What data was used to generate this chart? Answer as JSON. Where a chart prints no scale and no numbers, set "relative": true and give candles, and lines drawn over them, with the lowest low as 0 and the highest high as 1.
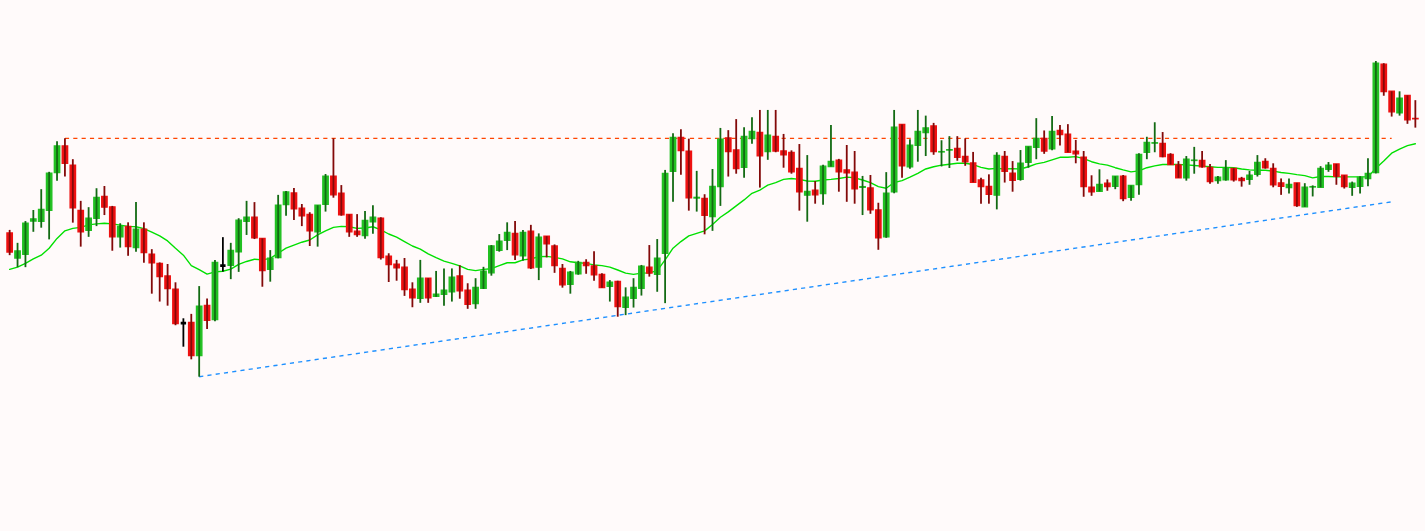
{
  "chart_data": {
    "type": "candlestick",
    "relative": true,
    "categories": [
      null,
      null,
      null,
      null,
      null,
      null,
      null,
      null,
      null,
      null,
      null,
      null,
      null,
      null,
      null,
      null,
      null,
      null,
      null,
      null,
      null,
      null,
      null,
      null,
      null,
      null,
      null,
      null,
      null,
      null,
      null,
      null,
      null,
      null,
      null,
      null,
      null,
      null,
      null,
      null,
      null,
      null,
      null,
      null,
      null,
      null,
      null,
      null,
      null,
      null,
      null,
      null,
      null,
      null,
      null,
      null,
      null,
      null,
      null,
      null,
      null,
      null,
      null,
      null,
      null,
      null,
      null,
      null,
      null,
      null,
      null,
      null,
      null,
      null,
      null,
      null,
      null,
      null,
      null,
      null,
      null,
      null,
      null,
      null,
      null,
      null,
      null,
      null,
      null,
      null,
      null,
      null,
      null,
      null,
      null,
      null,
      null,
      null,
      null,
      null,
      null,
      null,
      null,
      null,
      null,
      null,
      null,
      null,
      null,
      null,
      null,
      null,
      null,
      null,
      null,
      null,
      null,
      null,
      null,
      null,
      null,
      null,
      null,
      null,
      null,
      null,
      null,
      null,
      null,
      null,
      null,
      null,
      null,
      null,
      null,
      null,
      null,
      null,
      null,
      null,
      null,
      null,
      null,
      null,
      null,
      null,
      null,
      null,
      null,
      null,
      null,
      null,
      null,
      null,
      null,
      null,
      null,
      null,
      null,
      null,
      null,
      null,
      null,
      null,
      null,
      null,
      null,
      null,
      null,
      null,
      null,
      null,
      null,
      null,
      null,
      null,
      null,
      null,
      null
    ],
    "ohlc": [
      [
        0.455,
        0.465,
        0.385,
        0.395
      ],
      [
        0.376,
        0.424,
        0.347,
        0.398
      ],
      [
        0.388,
        0.493,
        0.347,
        0.486
      ],
      [
        0.493,
        0.528,
        0.459,
        0.5
      ],
      [
        0.492,
        0.594,
        0.472,
        0.53
      ],
      [
        0.527,
        0.649,
        0.435,
        0.645
      ],
      [
        0.647,
        0.746,
        0.621,
        0.731
      ],
      [
        0.731,
        0.755,
        0.634,
        0.676
      ],
      [
        0.67,
        0.689,
        0.488,
        0.535
      ],
      [
        0.527,
        0.557,
        0.412,
        0.459
      ],
      [
        0.464,
        0.537,
        0.443,
        0.502
      ],
      [
        0.502,
        0.597,
        0.477,
        0.568
      ],
      [
        0.571,
        0.604,
        0.512,
        0.537
      ],
      [
        0.538,
        0.541,
        0.399,
        0.443
      ],
      [
        0.443,
        0.486,
        0.409,
        0.476
      ],
      [
        0.476,
        0.489,
        0.383,
        0.412
      ],
      [
        0.409,
        0.553,
        0.396,
        0.467
      ],
      [
        0.467,
        0.489,
        0.361,
        0.393
      ],
      [
        0.388,
        0.404,
        0.263,
        0.361
      ],
      [
        0.359,
        0.362,
        0.238,
        0.317
      ],
      [
        0.319,
        0.357,
        0.225,
        0.279
      ],
      [
        0.277,
        0.299,
        0.163,
        0.168
      ],
      [
        0.17,
        0.185,
        0.095,
        0.17
      ],
      [
        0.172,
        0.199,
        0.055,
        0.067
      ],
      [
        0.067,
        0.287,
        0,
        0.223
      ],
      [
        0.226,
        0.248,
        0.151,
        0.179
      ],
      [
        0.181,
        0.37,
        0.176,
        0.362
      ],
      [
        0.352,
        0.442,
        0.333,
        0.352
      ],
      [
        0.353,
        0.424,
        0.309,
        0.4
      ],
      [
        0.396,
        0.502,
        0.332,
        0.496
      ],
      [
        0.492,
        0.557,
        0.449,
        0.505
      ],
      [
        0.505,
        0.553,
        0.436,
        0.44
      ],
      [
        0.438,
        0.438,
        0.285,
        0.336
      ],
      [
        0.34,
        0.401,
        0.301,
        0.375
      ],
      [
        0.377,
        0.576,
        0.375,
        0.543
      ],
      [
        0.545,
        0.588,
        0.51,
        0.585
      ],
      [
        0.582,
        0.598,
        0.496,
        0.532
      ],
      [
        0.534,
        0.547,
        0.477,
        0.51
      ],
      [
        0.514,
        0.521,
        0.414,
        0.462
      ],
      [
        0.459,
        0.543,
        0.412,
        0.543
      ],
      [
        0.546,
        0.642,
        0.523,
        0.635
      ],
      [
        0.635,
        0.755,
        0.567,
        0.576
      ],
      [
        0.581,
        0.607,
        0.51,
        0.513
      ],
      [
        0.514,
        0.514,
        0.443,
        0.459
      ],
      [
        0.461,
        0.515,
        0.443,
        0.45
      ],
      [
        0.447,
        0.525,
        0.437,
        0.495
      ],
      [
        0.491,
        0.543,
        0.453,
        0.505
      ],
      [
        0.502,
        0.505,
        0.371,
        0.377
      ],
      [
        0.382,
        0.391,
        0.3,
        0.355
      ],
      [
        0.356,
        0.37,
        0.304,
        0.345
      ],
      [
        0.347,
        0.376,
        0.256,
        0.276
      ],
      [
        0.277,
        0.299,
        0.22,
        0.25
      ],
      [
        0.248,
        0.37,
        0.234,
        0.312
      ],
      [
        0.312,
        0.312,
        0.234,
        0.25
      ],
      [
        0.255,
        0.335,
        0.253,
        0.261
      ],
      [
        0.261,
        0.343,
        0.225,
        0.274
      ],
      [
        0.269,
        0.343,
        0.238,
        0.315
      ],
      [
        0.319,
        0.353,
        0.247,
        0.272
      ],
      [
        0.274,
        0.296,
        0.215,
        0.229
      ],
      [
        0.232,
        0.312,
        0.215,
        0.283
      ],
      [
        0.28,
        0.348,
        0.278,
        0.334
      ],
      [
        0.329,
        0.417,
        0.32,
        0.414
      ],
      [
        0.4,
        0.452,
        0.396,
        0.429
      ],
      [
        0.432,
        0.489,
        0.401,
        0.457
      ],
      [
        0.454,
        0.493,
        0.37,
        0.386
      ],
      [
        0.383,
        0.465,
        0.367,
        0.457
      ],
      [
        0.461,
        0.481,
        0.341,
        0.345
      ],
      [
        0.347,
        0.454,
        0.306,
        0.442
      ],
      [
        0.445,
        0.445,
        0.378,
        0.421
      ],
      [
        0.414,
        0.419,
        0.329,
        0.352
      ],
      [
        0.343,
        0.357,
        0.282,
        0.291
      ],
      [
        0.293,
        0.335,
        0.263,
        0.331
      ],
      [
        0.326,
        0.367,
        0.323,
        0.362
      ],
      [
        0.362,
        0.372,
        0.326,
        0.352
      ],
      [
        0.351,
        0.397,
        0.304,
        0.323
      ],
      [
        0.324,
        0.328,
        0.282,
        0.282
      ],
      [
        0.286,
        0.306,
        0.238,
        0.299
      ],
      [
        0.302,
        0.304,
        0.19,
        0.222
      ],
      [
        0.22,
        0.283,
        0.195,
        0.252
      ],
      [
        0.248,
        0.312,
        0.219,
        0.283
      ],
      [
        0.28,
        0.354,
        0.257,
        0.35
      ],
      [
        0.347,
        0.417,
        0.317,
        0.328
      ],
      [
        0.324,
        0.436,
        0.269,
        0.375
      ],
      [
        0.391,
        0.655,
        0.233,
        0.644
      ],
      [
        0.651,
        0.771,
        0.554,
        0.758
      ],
      [
        0.758,
        0.784,
        0.64,
        0.716
      ],
      [
        0.714,
        0.754,
        0.526,
        0.567
      ],
      [
        0.566,
        0.652,
        0.523,
        0.568
      ],
      [
        0.565,
        0.578,
        0.451,
        0.511
      ],
      [
        0.507,
        0.658,
        0.462,
        0.603
      ],
      [
        0.602,
        0.788,
        0.541,
        0.752
      ],
      [
        0.756,
        0.781,
        0.634,
        0.713
      ],
      [
        0.718,
        0.816,
        0.643,
        0.659
      ],
      [
        0.663,
        0.79,
        0.63,
        0.761
      ],
      [
        0.754,
        0.822,
        0.738,
        0.777
      ],
      [
        0.774,
        0.845,
        0.599,
        0.7
      ],
      [
        0.713,
        0.845,
        0.687,
        0.765
      ],
      [
        0.761,
        0.845,
        0.711,
        0.715
      ],
      [
        0.715,
        0.769,
        0.662,
        0.703
      ],
      [
        0.71,
        0.717,
        0.643,
        0.649
      ],
      [
        0.66,
        0.737,
        0.526,
        0.586
      ],
      [
        0.575,
        0.702,
        0.491,
        0.587
      ],
      [
        0.591,
        0.62,
        0.548,
        0.576
      ],
      [
        0.58,
        0.671,
        0.545,
        0.667
      ],
      [
        0.666,
        0.797,
        0.666,
        0.682
      ],
      [
        0.686,
        0.69,
        0.586,
        0.649
      ],
      [
        0.655,
        0.734,
        0.554,
        0.646
      ],
      [
        0.648,
        0.715,
        0.548,
        0.595
      ],
      [
        0.6,
        0.636,
        0.512,
        0.602
      ],
      [
        0.598,
        0.639,
        0.516,
        0.529
      ],
      [
        0.528,
        0.551,
        0.402,
        0.44
      ],
      [
        0.443,
        0.648,
        0.44,
        0.581
      ],
      [
        0.586,
        0.845,
        0.581,
        0.79
      ],
      [
        0.799,
        0.799,
        0.63,
        0.668
      ],
      [
        0.665,
        0.752,
        0.659,
        0.733
      ],
      [
        0.733,
        0.845,
        0.681,
        0.777
      ],
      [
        0.773,
        0.827,
        0.699,
        0.788
      ],
      [
        0.794,
        0.804,
        0.703,
        0.713
      ],
      [
        0.712,
        0.749,
        0.666,
        0.713
      ],
      [
        0.718,
        0.762,
        0.661,
        0.719
      ],
      [
        0.723,
        0.762,
        0.684,
        0.695
      ],
      [
        0.698,
        0.755,
        0.668,
        0.681
      ],
      [
        0.677,
        0.712,
        0.616,
        0.616
      ],
      [
        0.623,
        0.63,
        0.548,
        0.602
      ],
      [
        0.603,
        0.641,
        0.548,
        0.578
      ],
      [
        0.575,
        0.711,
        0.53,
        0.701
      ],
      [
        0.698,
        0.715,
        0.615,
        0.651
      ],
      [
        0.645,
        0.683,
        0.586,
        0.622
      ],
      [
        0.625,
        0.718,
        0.621,
        0.676
      ],
      [
        0.679,
        0.729,
        0.662,
        0.729
      ],
      [
        0.727,
        0.819,
        0.689,
        0.755
      ],
      [
        0.755,
        0.78,
        0.706,
        0.715
      ],
      [
        0.722,
        0.826,
        0.717,
        0.777
      ],
      [
        0.78,
        0.797,
        0.732,
        0.767
      ],
      [
        0.768,
        0.8,
        0.711,
        0.711
      ],
      [
        0.714,
        0.75,
        0.676,
        0.706
      ],
      [
        0.695,
        0.715,
        0.57,
        0.602
      ],
      [
        0.6,
        0.638,
        0.573,
        0.586
      ],
      [
        0.587,
        0.657,
        0.587,
        0.609
      ],
      [
        0.613,
        0.625,
        0.589,
        0.602
      ],
      [
        0.603,
        0.635,
        0.594,
        0.635
      ],
      [
        0.635,
        0.639,
        0.556,
        0.564
      ],
      [
        0.568,
        0.606,
        0.557,
        0.606
      ],
      [
        0.609,
        0.708,
        0.576,
        0.704
      ],
      [
        0.711,
        0.76,
        0.689,
        0.742
      ],
      [
        0.74,
        0.806,
        0.711,
        0.741
      ],
      [
        0.739,
        0.775,
        0.695,
        0.697
      ],
      [
        0.704,
        0.708,
        0.672,
        0.672
      ],
      [
        0.671,
        0.683,
        0.63,
        0.63
      ],
      [
        0.63,
        0.699,
        0.621,
        0.689
      ],
      [
        0.685,
        0.728,
        0.643,
        0.686
      ],
      [
        0.685,
        0.715,
        0.662,
        0.665
      ],
      [
        0.663,
        0.674,
        0.611,
        0.618
      ],
      [
        0.621,
        0.636,
        0.611,
        0.632
      ],
      [
        0.624,
        0.686,
        0.621,
        0.66
      ],
      [
        0.66,
        0.66,
        0.618,
        0.624
      ],
      [
        0.628,
        0.633,
        0.602,
        0.621
      ],
      [
        0.625,
        0.652,
        0.608,
        0.638
      ],
      [
        0.641,
        0.702,
        0.634,
        0.679
      ],
      [
        0.682,
        0.692,
        0.659,
        0.662
      ],
      [
        0.66,
        0.676,
        0.6,
        0.608
      ],
      [
        0.614,
        0.628,
        0.576,
        0.603
      ],
      [
        0.599,
        0.628,
        0.58,
        0.609
      ],
      [
        0.614,
        0.614,
        0.538,
        0.542
      ],
      [
        0.538,
        0.613,
        0.538,
        0.6
      ],
      [
        0.601,
        0.606,
        0.571,
        0.602
      ],
      [
        0.6,
        0.667,
        0.6,
        0.66
      ],
      [
        0.657,
        0.68,
        0.649,
        0.67
      ],
      [
        0.674,
        0.674,
        0.608,
        0.635
      ],
      [
        0.638,
        0.638,
        0.596,
        0.602
      ],
      [
        0.6,
        0.618,
        0.573,
        0.613
      ],
      [
        0.603,
        0.635,
        0.58,
        0.632
      ],
      [
        0.628,
        0.692,
        0.603,
        0.644
      ],
      [
        0.647,
        1,
        0.644,
        0.993
      ],
      [
        0.99,
        0.993,
        0.89,
        0.903
      ],
      [
        0.904,
        0.904,
        0.824,
        0.839
      ],
      [
        0.836,
        0.904,
        0.827,
        0.882
      ],
      [
        0.891,
        0.891,
        0.801,
        0.814
      ],
      [
        0.818,
        0.876,
        0.789,
        0.817
      ]
    ],
    "colors": [
      "#ee1111",
      "#22c022",
      "#22c022",
      "#22c022",
      "#22c022",
      "#22c022",
      "#22c022",
      "#ee1111",
      "#ee1111",
      "#ee1111",
      "#22c022",
      "#22c022",
      "#ee1111",
      "#ee1111",
      "#22c022",
      "#ee1111",
      "#22c022",
      "#ee1111",
      "#ee1111",
      "#ee1111",
      "#ee1111",
      "#ee1111",
      "#000000",
      "#ee1111",
      "#22c022",
      "#ee1111",
      "#22c022",
      "#000000",
      "#22c022",
      "#22c022",
      "#22c022",
      "#ee1111",
      "#ee1111",
      "#22c022",
      "#22c022",
      "#22c022",
      "#ee1111",
      "#ee1111",
      "#ee1111",
      "#22c022",
      "#22c022",
      "#ee1111",
      "#ee1111",
      "#ee1111",
      "#ee1111",
      "#22c022",
      "#22c022",
      "#ee1111",
      "#ee1111",
      "#ee1111",
      "#ee1111",
      "#ee1111",
      "#22c022",
      "#ee1111",
      "#22c022",
      "#22c022",
      "#22c022",
      "#ee1111",
      "#ee1111",
      "#22c022",
      "#22c022",
      "#22c022",
      "#22c022",
      "#22c022",
      "#ee1111",
      "#22c022",
      "#ee1111",
      "#22c022",
      "#ee1111",
      "#ee1111",
      "#ee1111",
      "#22c022",
      "#22c022",
      "#ee1111",
      "#ee1111",
      "#ee1111",
      "#22c022",
      "#ee1111",
      "#22c022",
      "#22c022",
      "#22c022",
      "#ee1111",
      "#22c022",
      "#22c022",
      "#22c022",
      "#ee1111",
      "#ee1111",
      "#22c022",
      "#ee1111",
      "#22c022",
      "#22c022",
      "#ee1111",
      "#ee1111",
      "#22c022",
      "#22c022",
      "#ee1111",
      "#22c022",
      "#ee1111",
      "#ee1111",
      "#ee1111",
      "#ee1111",
      "#22c022",
      "#ee1111",
      "#22c022",
      "#22c022",
      "#ee1111",
      "#ee1111",
      "#ee1111",
      "#22c022",
      "#ee1111",
      "#ee1111",
      "#22c022",
      "#22c022",
      "#ee1111",
      "#22c022",
      "#22c022",
      "#22c022",
      "#ee1111",
      "#22c022",
      "#22c022",
      "#ee1111",
      "#ee1111",
      "#ee1111",
      "#ee1111",
      "#ee1111",
      "#22c022",
      "#ee1111",
      "#ee1111",
      "#22c022",
      "#22c022",
      "#22c022",
      "#ee1111",
      "#22c022",
      "#ee1111",
      "#ee1111",
      "#ee1111",
      "#ee1111",
      "#ee1111",
      "#22c022",
      "#ee1111",
      "#22c022",
      "#ee1111",
      "#22c022",
      "#22c022",
      "#22c022",
      "#22c022",
      "#ee1111",
      "#ee1111",
      "#ee1111",
      "#22c022",
      "#22c022",
      "#ee1111",
      "#ee1111",
      "#22c022",
      "#22c022",
      "#ee1111",
      "#ee1111",
      "#22c022",
      "#22c022",
      "#ee1111",
      "#ee1111",
      "#ee1111",
      "#22c022",
      "#ee1111",
      "#22c022",
      "#22c022",
      "#22c022",
      "#22c022",
      "#ee1111",
      "#ee1111",
      "#22c022",
      "#22c022",
      "#22c022",
      "#22c022",
      "#ee1111",
      "#ee1111",
      "#22c022",
      "#ee1111",
      "#ee1111"
    ],
    "series": [
      {
        "type": "line",
        "color": "#00e000",
        "values": [
          0.34,
          0.347,
          0.359,
          0.373,
          0.385,
          0.407,
          0.438,
          0.462,
          0.47,
          0.473,
          0.481,
          0.484,
          0.486,
          0.484,
          0.48,
          0.476,
          0.475,
          0.469,
          0.458,
          0.446,
          0.43,
          0.407,
          0.385,
          0.352,
          0.339,
          0.325,
          0.332,
          0.334,
          0.341,
          0.356,
          0.365,
          0.372,
          0.37,
          0.375,
          0.391,
          0.407,
          0.417,
          0.426,
          0.433,
          0.449,
          0.462,
          0.473,
          0.476,
          0.475,
          0.47,
          0.471,
          0.475,
          0.465,
          0.452,
          0.442,
          0.428,
          0.414,
          0.404,
          0.389,
          0.377,
          0.366,
          0.359,
          0.351,
          0.34,
          0.336,
          0.34,
          0.342,
          0.352,
          0.361,
          0.361,
          0.37,
          0.373,
          0.38,
          0.381,
          0.378,
          0.373,
          0.364,
          0.361,
          0.359,
          0.354,
          0.352,
          0.347,
          0.338,
          0.328,
          0.324,
          0.328,
          0.329,
          0.336,
          0.37,
          0.407,
          0.428,
          0.446,
          0.454,
          0.462,
          0.482,
          0.505,
          0.522,
          0.541,
          0.56,
          0.581,
          0.591,
          0.607,
          0.615,
          0.625,
          0.628,
          0.625,
          0.62,
          0.619,
          0.623,
          0.625,
          0.628,
          0.632,
          0.63,
          0.623,
          0.615,
          0.602,
          0.597,
          0.615,
          0.621,
          0.632,
          0.644,
          0.658,
          0.665,
          0.67,
          0.673,
          0.676,
          0.676,
          0.672,
          0.663,
          0.658,
          0.66,
          0.658,
          0.659,
          0.658,
          0.665,
          0.674,
          0.679,
          0.687,
          0.695,
          0.695,
          0.697,
          0.691,
          0.681,
          0.674,
          0.67,
          0.662,
          0.655,
          0.649,
          0.652,
          0.662,
          0.668,
          0.672,
          0.672,
          0.672,
          0.671,
          0.669,
          0.667,
          0.665,
          0.663,
          0.663,
          0.662,
          0.658,
          0.655,
          0.654,
          0.654,
          0.651,
          0.647,
          0.644,
          0.64,
          0.637,
          0.63,
          0.634,
          0.634,
          0.633,
          0.633,
          0.633,
          0.633,
          0.633,
          0.66,
          0.683,
          0.708,
          0.721,
          0.732,
          0.738
        ]
      },
      {
        "type": "line",
        "color": "#ff4500",
        "line_style": "dashed",
        "values": [
          null,
          null,
          null,
          null,
          null,
          null,
          null,
          0.755,
          null,
          null,
          null,
          null,
          null,
          null,
          null,
          null,
          null,
          null,
          null,
          null,
          null,
          null,
          null,
          null,
          null,
          null,
          null,
          null,
          null,
          null,
          null,
          null,
          null,
          null,
          null,
          null,
          null,
          null,
          null,
          null,
          null,
          null,
          null,
          null,
          null,
          null,
          null,
          null,
          null,
          null,
          null,
          null,
          null,
          null,
          null,
          null,
          null,
          null,
          null,
          null,
          null,
          null,
          null,
          null,
          null,
          null,
          null,
          null,
          null,
          null,
          null,
          null,
          null,
          null,
          null,
          null,
          null,
          null,
          null,
          null,
          null,
          null,
          null,
          null,
          null,
          null,
          null,
          null,
          null,
          null,
          null,
          null,
          null,
          null,
          null,
          null,
          null,
          null,
          null,
          null,
          null,
          null,
          null,
          null,
          null,
          null,
          null,
          null,
          null,
          null,
          null,
          null,
          null,
          null,
          null,
          null,
          null,
          null,
          null,
          null,
          null,
          null,
          null,
          null,
          null,
          null,
          null,
          null,
          null,
          null,
          null,
          null,
          null,
          null,
          null,
          null,
          null,
          null,
          null,
          null,
          null,
          null,
          null,
          null,
          null,
          null,
          null,
          null,
          null,
          null,
          null,
          null,
          null,
          null,
          null,
          null,
          null,
          null,
          null,
          null,
          null,
          null,
          null,
          null,
          null,
          null,
          null,
          null,
          null,
          null,
          null,
          null,
          null,
          null,
          null,
          0.755,
          null,
          null,
          null
        ]
      },
      {
        "type": "line",
        "color": "#1e90ff",
        "line_style": "dashed",
        "values": [
          null,
          null,
          null,
          null,
          null,
          null,
          null,
          null,
          null,
          null,
          null,
          null,
          null,
          null,
          null,
          null,
          null,
          null,
          null,
          null,
          null,
          null,
          null,
          null,
          0,
          null,
          null,
          null,
          null,
          null,
          null,
          null,
          null,
          null,
          null,
          null,
          null,
          null,
          null,
          null,
          null,
          null,
          null,
          null,
          null,
          null,
          null,
          null,
          null,
          null,
          null,
          null,
          null,
          null,
          null,
          null,
          null,
          null,
          null,
          null,
          null,
          null,
          null,
          null,
          null,
          null,
          null,
          null,
          null,
          null,
          null,
          null,
          null,
          null,
          null,
          null,
          null,
          null,
          null,
          null,
          null,
          null,
          null,
          null,
          null,
          null,
          null,
          null,
          null,
          null,
          null,
          null,
          null,
          null,
          null,
          null,
          null,
          null,
          null,
          null,
          null,
          null,
          null,
          null,
          null,
          null,
          null,
          null,
          null,
          null,
          null,
          null,
          null,
          null,
          null,
          null,
          null,
          null,
          null,
          null,
          null,
          null,
          null,
          null,
          null,
          null,
          null,
          null,
          null,
          null,
          null,
          null,
          null,
          null,
          null,
          null,
          null,
          null,
          null,
          null,
          null,
          null,
          null,
          null,
          null,
          null,
          null,
          null,
          null,
          null,
          null,
          null,
          null,
          null,
          null,
          null,
          null,
          null,
          null,
          null,
          null,
          null,
          null,
          null,
          null,
          null,
          null,
          null,
          null,
          null,
          null,
          null,
          null,
          null,
          null,
          0.554,
          null,
          null,
          null
        ]
      }
    ]
  }
}
